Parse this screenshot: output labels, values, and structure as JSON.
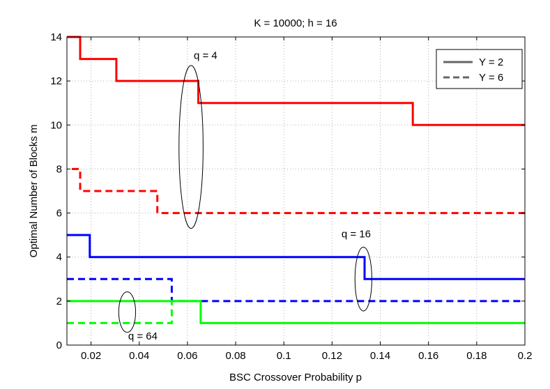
{
  "chart_data": {
    "type": "line",
    "title": "K = 10000; h = 16",
    "xlabel": "BSC Crossover Probability p",
    "ylabel": "Optimal Number of Blocks m",
    "xlim": [
      0.01,
      0.2
    ],
    "ylim": [
      0,
      14
    ],
    "xticks": [
      0.02,
      0.04,
      0.06,
      0.08,
      0.1,
      0.12,
      0.14,
      0.16,
      0.18,
      0.2
    ],
    "xtick_labels": [
      "0.02",
      "0.04",
      "0.06",
      "0.08",
      "0.1",
      "0.12",
      "0.14",
      "0.16",
      "0.18",
      "0.2"
    ],
    "yticks": [
      0,
      2,
      4,
      6,
      8,
      10,
      12,
      14
    ],
    "ytick_labels": [
      "0",
      "2",
      "4",
      "6",
      "8",
      "10",
      "12",
      "14"
    ],
    "grid": true,
    "legend_position": "top-right",
    "legend": [
      {
        "label": "Y = 2",
        "style": "solid"
      },
      {
        "label": "Y = 6",
        "style": "dashed"
      }
    ],
    "series": [
      {
        "q": 4,
        "Y": 2,
        "style": "solid",
        "color": "#ff0000",
        "x": [
          0.01,
          0.0155,
          0.0155,
          0.0305,
          0.0305,
          0.0645,
          0.0645,
          0.1535,
          0.1535,
          0.2
        ],
        "y": [
          14,
          14,
          13,
          13,
          12,
          12,
          11,
          11,
          10,
          10
        ]
      },
      {
        "q": 4,
        "Y": 6,
        "style": "dashed",
        "color": "#ff0000",
        "x": [
          0.012,
          0.0155,
          0.0155,
          0.0475,
          0.0475,
          0.2
        ],
        "y": [
          8,
          8,
          7,
          7,
          6,
          6
        ]
      },
      {
        "q": 16,
        "Y": 2,
        "style": "solid",
        "color": "#0000ff",
        "x": [
          0.01,
          0.0195,
          0.0195,
          0.1335,
          0.1335,
          0.2
        ],
        "y": [
          5,
          5,
          4,
          4,
          3,
          3
        ]
      },
      {
        "q": 16,
        "Y": 6,
        "style": "dashed",
        "color": "#0000ff",
        "x": [
          0.01,
          0.0535,
          0.0535,
          0.2
        ],
        "y": [
          3,
          3,
          2,
          2
        ]
      },
      {
        "q": 64,
        "Y": 2,
        "style": "solid",
        "color": "#00ff00",
        "x": [
          0.01,
          0.0655,
          0.0655,
          0.2
        ],
        "y": [
          2,
          2,
          1,
          1
        ]
      },
      {
        "q": 64,
        "Y": 6,
        "style": "dashed",
        "color": "#00ff00",
        "x": [
          0.01,
          0.0535,
          0.0535,
          0.065
        ],
        "y": [
          1,
          1,
          2,
          2
        ]
      }
    ],
    "annotations": [
      {
        "text": "q = 4",
        "ellipse_center": [
          0.0615,
          9
        ],
        "ellipse_radius": [
          0.005,
          3.7
        ],
        "label_at": [
          0.0675,
          13
        ]
      },
      {
        "text": "q = 16",
        "ellipse_center": [
          0.133,
          3
        ],
        "ellipse_radius": [
          0.0035,
          1.45
        ],
        "label_at": [
          0.13,
          4.9
        ]
      },
      {
        "text": "q = 64",
        "ellipse_center": [
          0.035,
          1.5
        ],
        "ellipse_radius": [
          0.0035,
          0.92
        ],
        "label_at": [
          0.0415,
          0.25
        ]
      }
    ]
  }
}
